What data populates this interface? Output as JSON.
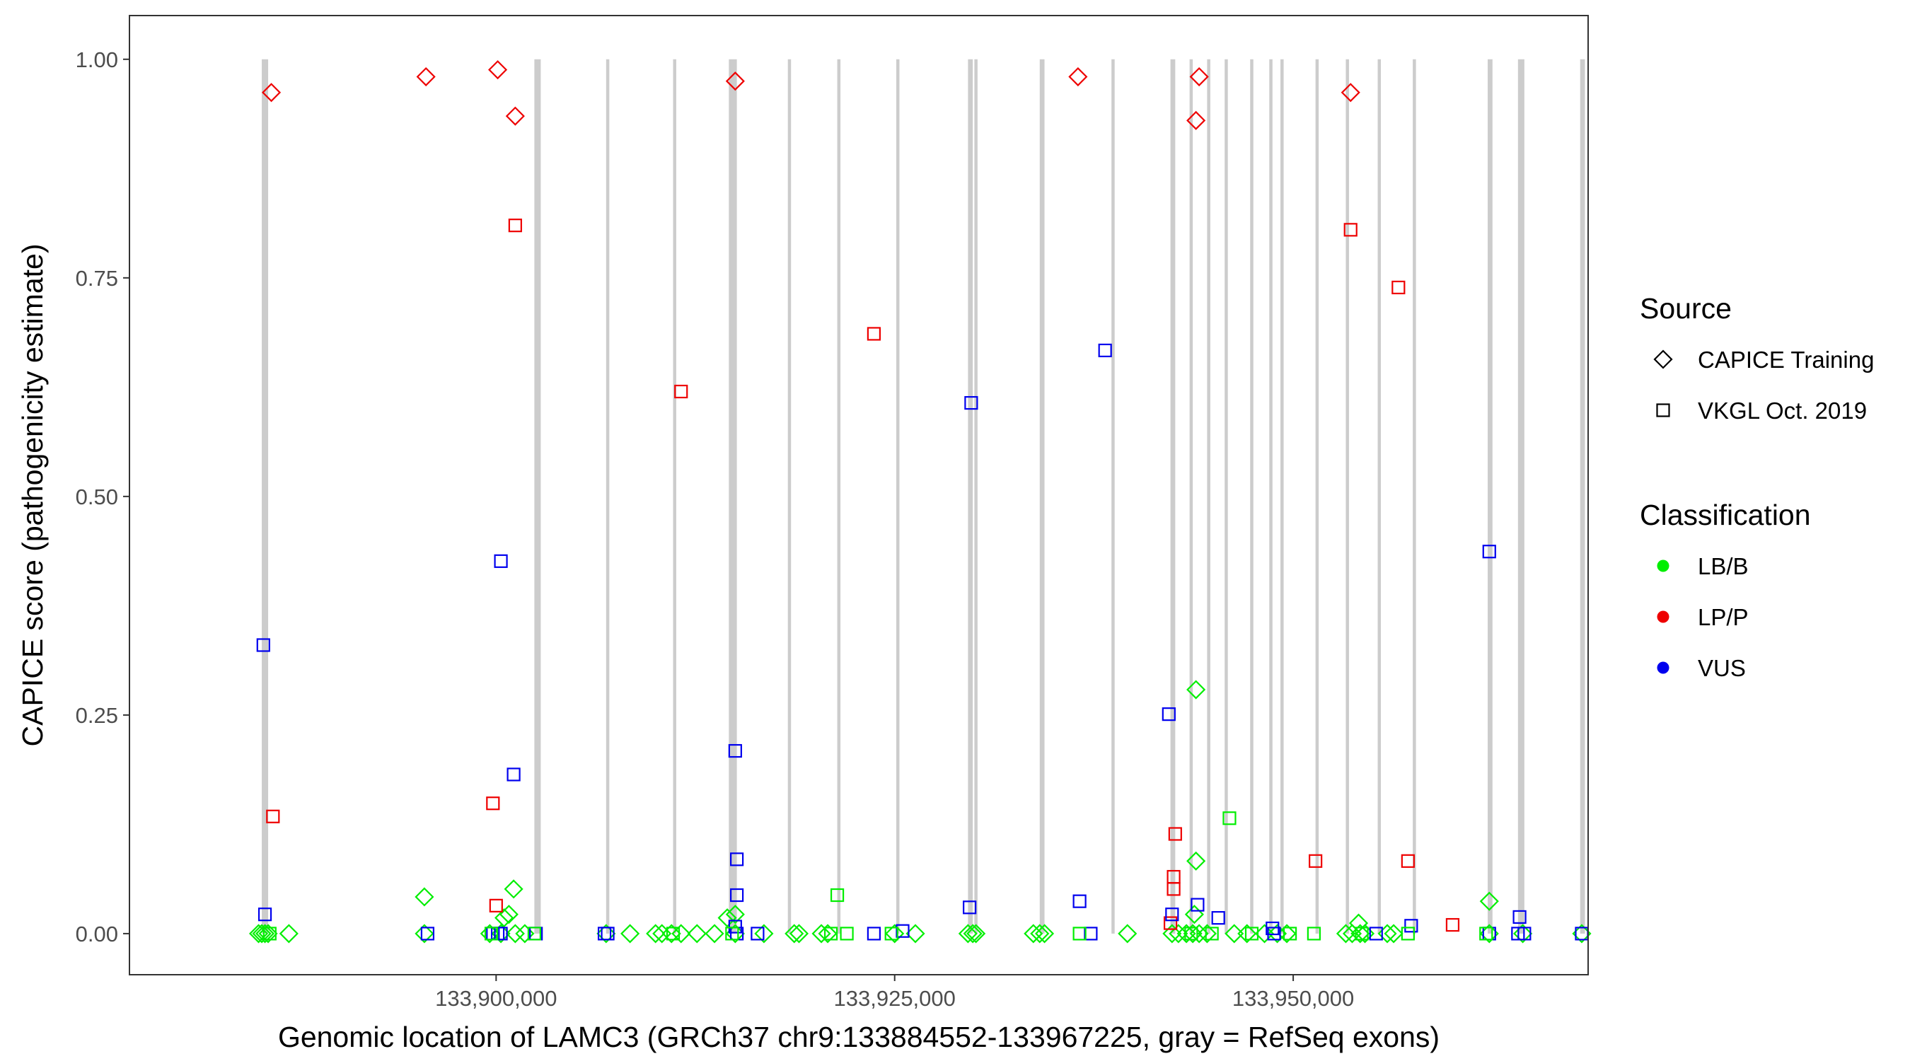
{
  "chart_data": {
    "type": "scatter",
    "xlabel": "Genomic location of LAMC3 (GRCh37 chr9:133884552-133967225, gray = RefSeq exons)",
    "ylabel": "CAPICE score (pathogenicity estimate)",
    "xlim": [
      133877000,
      133968500
    ],
    "ylim": [
      -0.047,
      1.05
    ],
    "x_ticks": [
      133900000,
      133925000,
      133950000
    ],
    "x_tick_labels": [
      "133,900,000",
      "133,925,000",
      "133,950,000"
    ],
    "y_ticks": [
      0.0,
      0.25,
      0.5,
      0.75,
      1.0
    ],
    "y_tick_labels": [
      "0.00",
      "0.25",
      "0.50",
      "0.75",
      "1.00"
    ],
    "grid": false,
    "exon_color": "#cccccc",
    "exons": [
      {
        "start": 133885300,
        "end": 133885700
      },
      {
        "start": 133902400,
        "end": 133902800
      },
      {
        "start": 133906900,
        "end": 133907100
      },
      {
        "start": 133911100,
        "end": 133911300
      },
      {
        "start": 133914600,
        "end": 133915100
      },
      {
        "start": 133918300,
        "end": 133918500
      },
      {
        "start": 133921400,
        "end": 133921600
      },
      {
        "start": 133925100,
        "end": 133925300
      },
      {
        "start": 133929600,
        "end": 133929900
      },
      {
        "start": 133930000,
        "end": 133930200
      },
      {
        "start": 133934100,
        "end": 133934400
      },
      {
        "start": 133938600,
        "end": 133938800
      },
      {
        "start": 133942300,
        "end": 133942600
      },
      {
        "start": 133943500,
        "end": 133943700
      },
      {
        "start": 133944600,
        "end": 133944800
      },
      {
        "start": 133945700,
        "end": 133945900
      },
      {
        "start": 133947300,
        "end": 133947500
      },
      {
        "start": 133948500,
        "end": 133948700
      },
      {
        "start": 133949200,
        "end": 133949400
      },
      {
        "start": 133951400,
        "end": 133951600
      },
      {
        "start": 133953300,
        "end": 133953500
      },
      {
        "start": 133955300,
        "end": 133955500
      },
      {
        "start": 133957500,
        "end": 133957700
      },
      {
        "start": 133962200,
        "end": 133962500
      },
      {
        "start": 133964100,
        "end": 133964500
      },
      {
        "start": 133968000,
        "end": 133968300
      }
    ],
    "legend": {
      "position": "right",
      "source": {
        "title": "Source",
        "items": [
          {
            "label": "CAPICE Training",
            "shape": "diamond"
          },
          {
            "label": "VKGL Oct. 2019",
            "shape": "square"
          }
        ]
      },
      "classification": {
        "title": "Classification",
        "items": [
          {
            "label": "LB/B",
            "color": "#00ee00"
          },
          {
            "label": "LP/P",
            "color": "#ee0000"
          },
          {
            "label": "VUS",
            "color": "#0000ee"
          }
        ]
      }
    },
    "series": [
      {
        "source": "CAPICE Training",
        "classification": "LP/P",
        "points": [
          {
            "x": 133885900,
            "y": 0.962
          },
          {
            "x": 133895600,
            "y": 0.98
          },
          {
            "x": 133900100,
            "y": 0.988
          },
          {
            "x": 133901200,
            "y": 0.935
          },
          {
            "x": 133915000,
            "y": 0.975
          },
          {
            "x": 133936500,
            "y": 0.98
          },
          {
            "x": 133943900,
            "y": 0.93
          },
          {
            "x": 133944100,
            "y": 0.98
          },
          {
            "x": 133953600,
            "y": 0.962
          }
        ]
      },
      {
        "source": "CAPICE Training",
        "classification": "LB/B",
        "points": [
          {
            "x": 133895500,
            "y": 0.042
          },
          {
            "x": 133900500,
            "y": 0.018
          },
          {
            "x": 133900800,
            "y": 0.022
          },
          {
            "x": 133901100,
            "y": 0.051
          },
          {
            "x": 133914500,
            "y": 0.018
          },
          {
            "x": 133915000,
            "y": 0.022
          },
          {
            "x": 133943900,
            "y": 0.279
          },
          {
            "x": 133943900,
            "y": 0.083
          },
          {
            "x": 133943800,
            "y": 0.022
          },
          {
            "x": 133954100,
            "y": 0.012
          },
          {
            "x": 133962300,
            "y": 0.037
          },
          {
            "x": 133885100,
            "y": 0
          },
          {
            "x": 133885300,
            "y": 0
          },
          {
            "x": 133885500,
            "y": 0
          },
          {
            "x": 133885700,
            "y": 0
          },
          {
            "x": 133887000,
            "y": 0
          },
          {
            "x": 133895500,
            "y": 0
          },
          {
            "x": 133899600,
            "y": 0
          },
          {
            "x": 133900300,
            "y": 0
          },
          {
            "x": 133901200,
            "y": 0
          },
          {
            "x": 133901800,
            "y": 0
          },
          {
            "x": 133906900,
            "y": 0
          },
          {
            "x": 133908400,
            "y": 0
          },
          {
            "x": 133910000,
            "y": 0
          },
          {
            "x": 133910400,
            "y": 0
          },
          {
            "x": 133911000,
            "y": 0
          },
          {
            "x": 133911600,
            "y": 0
          },
          {
            "x": 133912600,
            "y": 0
          },
          {
            "x": 133913700,
            "y": 0
          },
          {
            "x": 133915000,
            "y": 0
          },
          {
            "x": 133916800,
            "y": 0
          },
          {
            "x": 133918700,
            "y": 0
          },
          {
            "x": 133919000,
            "y": 0
          },
          {
            "x": 133920400,
            "y": 0
          },
          {
            "x": 133920800,
            "y": 0
          },
          {
            "x": 133925000,
            "y": 0
          },
          {
            "x": 133926300,
            "y": 0
          },
          {
            "x": 133929600,
            "y": 0
          },
          {
            "x": 133929900,
            "y": 0
          },
          {
            "x": 133930100,
            "y": 0
          },
          {
            "x": 133933700,
            "y": 0
          },
          {
            "x": 133934100,
            "y": 0
          },
          {
            "x": 133934400,
            "y": 0
          },
          {
            "x": 133939600,
            "y": 0
          },
          {
            "x": 133942400,
            "y": 0
          },
          {
            "x": 133942800,
            "y": 0
          },
          {
            "x": 133943300,
            "y": 0
          },
          {
            "x": 133943700,
            "y": 0
          },
          {
            "x": 133944100,
            "y": 0
          },
          {
            "x": 133944600,
            "y": 0
          },
          {
            "x": 133946300,
            "y": 0
          },
          {
            "x": 133947100,
            "y": 0
          },
          {
            "x": 133948200,
            "y": 0
          },
          {
            "x": 133949000,
            "y": 0
          },
          {
            "x": 133949600,
            "y": 0
          },
          {
            "x": 133953300,
            "y": 0
          },
          {
            "x": 133953700,
            "y": 0
          },
          {
            "x": 133954200,
            "y": 0
          },
          {
            "x": 133954500,
            "y": 0
          },
          {
            "x": 133955900,
            "y": 0
          },
          {
            "x": 133956300,
            "y": 0
          },
          {
            "x": 133962300,
            "y": 0
          },
          {
            "x": 133964400,
            "y": 0
          },
          {
            "x": 133968100,
            "y": 0
          }
        ]
      },
      {
        "source": "VKGL Oct. 2019",
        "classification": "LP/P",
        "points": [
          {
            "x": 133886000,
            "y": 0.134
          },
          {
            "x": 133901200,
            "y": 0.81
          },
          {
            "x": 133899800,
            "y": 0.149
          },
          {
            "x": 133900000,
            "y": 0.032
          },
          {
            "x": 133911600,
            "y": 0.62
          },
          {
            "x": 133923700,
            "y": 0.686
          },
          {
            "x": 133942600,
            "y": 0.114
          },
          {
            "x": 133942500,
            "y": 0.065
          },
          {
            "x": 133942500,
            "y": 0.051
          },
          {
            "x": 133942300,
            "y": 0.012
          },
          {
            "x": 133951400,
            "y": 0.083
          },
          {
            "x": 133953600,
            "y": 0.805
          },
          {
            "x": 133956600,
            "y": 0.739
          },
          {
            "x": 133957200,
            "y": 0.083
          },
          {
            "x": 133960000,
            "y": 0.01
          }
        ]
      },
      {
        "source": "VKGL Oct. 2019",
        "classification": "VUS",
        "points": [
          {
            "x": 133885400,
            "y": 0.33
          },
          {
            "x": 133885500,
            "y": 0.022
          },
          {
            "x": 133900300,
            "y": 0.426
          },
          {
            "x": 133901100,
            "y": 0.182
          },
          {
            "x": 133915000,
            "y": 0.209
          },
          {
            "x": 133915100,
            "y": 0.085
          },
          {
            "x": 133915100,
            "y": 0.044
          },
          {
            "x": 133915000,
            "y": 0.008
          },
          {
            "x": 133929800,
            "y": 0.607
          },
          {
            "x": 133929700,
            "y": 0.03
          },
          {
            "x": 133938200,
            "y": 0.667
          },
          {
            "x": 133936600,
            "y": 0.037
          },
          {
            "x": 133942200,
            "y": 0.251
          },
          {
            "x": 133942400,
            "y": 0.022
          },
          {
            "x": 133944000,
            "y": 0.033
          },
          {
            "x": 133945300,
            "y": 0.018
          },
          {
            "x": 133948700,
            "y": 0.006
          },
          {
            "x": 133957400,
            "y": 0.009
          },
          {
            "x": 133962300,
            "y": 0.437
          },
          {
            "x": 133964200,
            "y": 0.019
          },
          {
            "x": 133895700,
            "y": 0
          },
          {
            "x": 133899800,
            "y": 0
          },
          {
            "x": 133900100,
            "y": 0
          },
          {
            "x": 133900300,
            "y": 0
          },
          {
            "x": 133902500,
            "y": 0
          },
          {
            "x": 133906800,
            "y": 0
          },
          {
            "x": 133907000,
            "y": 0
          },
          {
            "x": 133915100,
            "y": 0
          },
          {
            "x": 133916400,
            "y": 0
          },
          {
            "x": 133923700,
            "y": 0
          },
          {
            "x": 133925500,
            "y": 0.003
          },
          {
            "x": 133937300,
            "y": 0
          },
          {
            "x": 133948800,
            "y": 0
          },
          {
            "x": 133955200,
            "y": 0
          },
          {
            "x": 133962300,
            "y": 0
          },
          {
            "x": 133964100,
            "y": 0
          },
          {
            "x": 133964500,
            "y": 0
          },
          {
            "x": 133968100,
            "y": 0
          }
        ]
      },
      {
        "source": "VKGL Oct. 2019",
        "classification": "LB/B",
        "points": [
          {
            "x": 133921400,
            "y": 0.044
          },
          {
            "x": 133946000,
            "y": 0.132
          },
          {
            "x": 133885800,
            "y": 0
          },
          {
            "x": 133899700,
            "y": 0
          },
          {
            "x": 133902400,
            "y": 0
          },
          {
            "x": 133911100,
            "y": 0
          },
          {
            "x": 133914800,
            "y": 0
          },
          {
            "x": 133921000,
            "y": 0
          },
          {
            "x": 133922000,
            "y": 0
          },
          {
            "x": 133924800,
            "y": 0
          },
          {
            "x": 133936600,
            "y": 0
          },
          {
            "x": 133943600,
            "y": 0
          },
          {
            "x": 133944900,
            "y": 0
          },
          {
            "x": 133947400,
            "y": 0
          },
          {
            "x": 133949800,
            "y": 0
          },
          {
            "x": 133951300,
            "y": 0
          },
          {
            "x": 133954300,
            "y": 0
          },
          {
            "x": 133957200,
            "y": 0
          },
          {
            "x": 133962100,
            "y": 0
          }
        ]
      }
    ]
  }
}
